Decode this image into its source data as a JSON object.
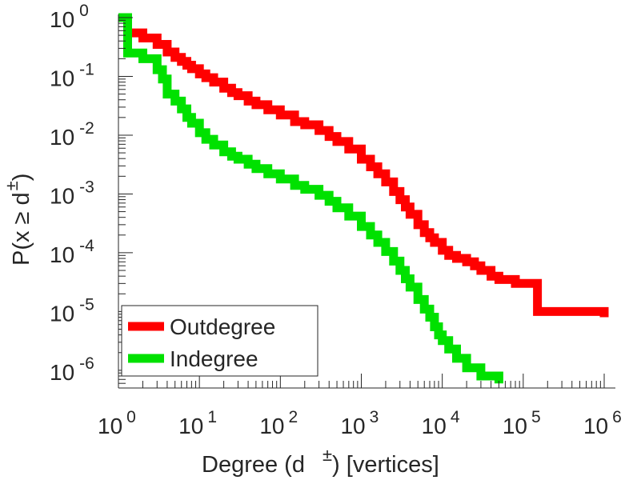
{
  "chart_data": {
    "type": "line",
    "scale": "log-log",
    "title": "",
    "xlabel": "Degree (d",
    "xlabel_superscript": "±",
    "xlabel_suffix": ") [vertices]",
    "ylabel": "P(x ≥ d",
    "ylabel_superscript": "±",
    "ylabel_suffix": ")",
    "xlim": [
      1,
      1200000
    ],
    "ylim": [
      5e-07,
      1
    ],
    "x_ticks": [
      {
        "value": 1,
        "base": "10",
        "exp": "0"
      },
      {
        "value": 10,
        "base": "10",
        "exp": "1"
      },
      {
        "value": 100,
        "base": "10",
        "exp": "2"
      },
      {
        "value": 1000,
        "base": "10",
        "exp": "3"
      },
      {
        "value": 10000,
        "base": "10",
        "exp": "4"
      },
      {
        "value": 100000,
        "base": "10",
        "exp": "5"
      },
      {
        "value": 1000000,
        "base": "10",
        "exp": "6"
      }
    ],
    "y_ticks": [
      {
        "value": 1,
        "base": "10",
        "exp": "0"
      },
      {
        "value": 0.1,
        "base": "10",
        "exp": "-1"
      },
      {
        "value": 0.01,
        "base": "10",
        "exp": "-2"
      },
      {
        "value": 0.001,
        "base": "10",
        "exp": "-3"
      },
      {
        "value": 0.0001,
        "base": "10",
        "exp": "-4"
      },
      {
        "value": 1e-05,
        "base": "10",
        "exp": "-5"
      },
      {
        "value": 1e-06,
        "base": "10",
        "exp": "-6"
      }
    ],
    "grid": false,
    "legend_position": "bottom-left",
    "series": [
      {
        "name": "Outdegree",
        "color": "#ff0000",
        "x": [
          1,
          1.3,
          2,
          3,
          4,
          5,
          6,
          7,
          8,
          10,
          12,
          15,
          20,
          25,
          30,
          40,
          50,
          70,
          100,
          150,
          200,
          300,
          400,
          500,
          700,
          1000,
          1300,
          1600,
          2000,
          2500,
          3000,
          3500,
          4000,
          5000,
          6000,
          7000,
          8000,
          10000,
          12000,
          15000,
          20000,
          25000,
          30000,
          40000,
          50000,
          80000,
          150000,
          1000000
        ],
        "y": [
          1,
          0.55,
          0.45,
          0.35,
          0.26,
          0.21,
          0.18,
          0.155,
          0.135,
          0.11,
          0.095,
          0.08,
          0.063,
          0.053,
          0.047,
          0.038,
          0.033,
          0.027,
          0.022,
          0.017,
          0.015,
          0.012,
          0.0095,
          0.0078,
          0.0058,
          0.0039,
          0.0029,
          0.0022,
          0.0016,
          0.0011,
          0.0008,
          0.0006,
          0.00045,
          0.0003,
          0.00022,
          0.00018,
          0.00015,
          0.00011,
          9e-05,
          8e-05,
          7e-05,
          6e-05,
          5e-05,
          4e-05,
          3.5e-05,
          3e-05,
          1e-05,
          8e-06
        ]
      },
      {
        "name": "Indegree",
        "color": "#00e100",
        "x": [
          1,
          1.3,
          2,
          3,
          3.5,
          4,
          5,
          6,
          7,
          8,
          10,
          12,
          15,
          20,
          25,
          30,
          40,
          50,
          70,
          100,
          150,
          200,
          300,
          400,
          500,
          700,
          1000,
          1300,
          1600,
          2000,
          2500,
          3000,
          3500,
          4000,
          5000,
          6000,
          7000,
          8000,
          9000,
          10000,
          12000,
          15000,
          20000,
          30000,
          50000
        ],
        "y": [
          1,
          0.25,
          0.2,
          0.13,
          0.09,
          0.05,
          0.038,
          0.028,
          0.02,
          0.016,
          0.011,
          0.0085,
          0.0068,
          0.0052,
          0.0044,
          0.0039,
          0.0032,
          0.0027,
          0.0022,
          0.0018,
          0.0014,
          0.0012,
          0.00095,
          0.00075,
          0.00058,
          0.00042,
          0.00028,
          0.0002,
          0.00015,
          0.000105,
          7.2e-05,
          5e-05,
          3.6e-05,
          2.6e-05,
          1.6e-05,
          1.1e-05,
          8e-06,
          5.5e-06,
          4e-06,
          3.2e-06,
          2.3e-06,
          1.6e-06,
          1.1e-06,
          8e-07,
          6e-07
        ]
      }
    ]
  }
}
